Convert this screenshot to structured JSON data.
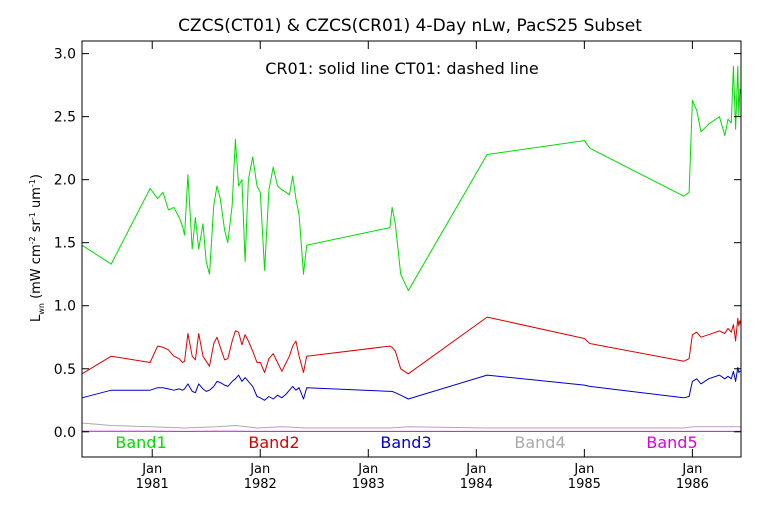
{
  "chart_data": {
    "type": "line",
    "title": "CZCS(CT01) & CZCS(CR01) 4-Day nLw, PacS25 Subset",
    "annotation": "CR01: solid line   CT01: dashed line",
    "ylabel": {
      "base": "L",
      "base_sub": "wn",
      "unit_open": " (mW cm",
      "exp1": "-2",
      "unit_mid1": " sr",
      "exp2": "-1",
      "unit_mid2": " um",
      "exp3": "-1",
      "unit_close": ")"
    },
    "x_range": [
      1980.35,
      1986.45
    ],
    "ylim": [
      -0.2,
      3.1
    ],
    "y_ticks": [
      {
        "value": 0.0,
        "label": "0.0"
      },
      {
        "value": 0.5,
        "label": "0.5"
      },
      {
        "value": 1.0,
        "label": "1.0"
      },
      {
        "value": 1.5,
        "label": "1.5"
      },
      {
        "value": 2.0,
        "label": "2.0"
      },
      {
        "value": 2.5,
        "label": "2.5"
      },
      {
        "value": 3.0,
        "label": "3.0"
      }
    ],
    "x_ticks": [
      {
        "value": 1981.0,
        "month": "Jan",
        "year": "1981"
      },
      {
        "value": 1982.0,
        "month": "Jan",
        "year": "1982"
      },
      {
        "value": 1983.0,
        "month": "Jan",
        "year": "1983"
      },
      {
        "value": 1984.0,
        "month": "Jan",
        "year": "1984"
      },
      {
        "value": 1985.0,
        "month": "Jan",
        "year": "1985"
      },
      {
        "value": 1986.0,
        "month": "Jan",
        "year": "1986"
      }
    ],
    "grid": false,
    "legend_position": "bottom",
    "series": [
      {
        "name": "Band1",
        "color": "#00dd00",
        "x": [
          1980.35,
          1980.62,
          1980.98,
          1981.05,
          1981.1,
          1981.15,
          1981.2,
          1981.25,
          1981.28,
          1981.3,
          1981.33,
          1981.37,
          1981.4,
          1981.43,
          1981.47,
          1981.5,
          1981.53,
          1981.57,
          1981.6,
          1981.63,
          1981.67,
          1981.7,
          1981.74,
          1981.77,
          1981.8,
          1981.83,
          1981.86,
          1981.89,
          1981.93,
          1981.97,
          1982.0,
          1982.04,
          1982.08,
          1982.12,
          1982.16,
          1982.2,
          1982.24,
          1982.27,
          1982.3,
          1982.33,
          1982.36,
          1982.4,
          1982.43,
          1983.2,
          1983.22,
          1983.25,
          1983.3,
          1983.37,
          1984.1,
          1985.0,
          1985.05,
          1985.92,
          1985.97,
          1986.0,
          1986.04,
          1986.08,
          1986.15,
          1986.25,
          1986.3,
          1986.33,
          1986.36,
          1986.38,
          1986.4,
          1986.42,
          1986.43,
          1986.44,
          1986.45
        ],
        "y": [
          1.48,
          1.33,
          1.93,
          1.85,
          1.9,
          1.76,
          1.78,
          1.7,
          1.63,
          1.56,
          2.04,
          1.45,
          1.7,
          1.45,
          1.65,
          1.35,
          1.25,
          1.8,
          1.95,
          1.85,
          1.6,
          1.5,
          1.8,
          2.32,
          1.95,
          2.0,
          1.35,
          2.0,
          2.18,
          1.95,
          1.9,
          1.28,
          1.92,
          2.1,
          1.95,
          1.92,
          1.9,
          1.88,
          2.03,
          1.85,
          1.72,
          1.25,
          1.48,
          1.62,
          1.78,
          1.65,
          1.25,
          1.12,
          2.2,
          2.31,
          2.25,
          1.87,
          1.9,
          2.63,
          2.55,
          2.38,
          2.44,
          2.5,
          2.35,
          2.48,
          2.45,
          2.9,
          2.4,
          2.9,
          2.5,
          2.72,
          2.68
        ]
      },
      {
        "name": "Band2",
        "color": "#dd0000",
        "x": [
          1980.35,
          1980.62,
          1980.98,
          1981.05,
          1981.1,
          1981.15,
          1981.2,
          1981.25,
          1981.28,
          1981.3,
          1981.33,
          1981.37,
          1981.4,
          1981.43,
          1981.47,
          1981.5,
          1981.53,
          1981.57,
          1981.6,
          1981.63,
          1981.67,
          1981.7,
          1981.74,
          1981.77,
          1981.8,
          1981.83,
          1981.86,
          1981.89,
          1981.93,
          1981.97,
          1982.0,
          1982.04,
          1982.08,
          1982.12,
          1982.16,
          1982.2,
          1982.24,
          1982.27,
          1982.3,
          1982.33,
          1982.36,
          1982.4,
          1982.43,
          1983.2,
          1983.22,
          1983.25,
          1983.3,
          1983.37,
          1984.1,
          1985.0,
          1985.05,
          1985.92,
          1985.97,
          1986.0,
          1986.04,
          1986.08,
          1986.15,
          1986.25,
          1986.3,
          1986.33,
          1986.36,
          1986.38,
          1986.4,
          1986.42,
          1986.43,
          1986.44,
          1986.45
        ],
        "y": [
          0.46,
          0.6,
          0.55,
          0.68,
          0.67,
          0.65,
          0.6,
          0.58,
          0.55,
          0.56,
          0.78,
          0.6,
          0.57,
          0.78,
          0.6,
          0.56,
          0.52,
          0.7,
          0.75,
          0.67,
          0.57,
          0.58,
          0.72,
          0.8,
          0.79,
          0.69,
          0.77,
          0.72,
          0.64,
          0.55,
          0.55,
          0.47,
          0.58,
          0.62,
          0.55,
          0.48,
          0.55,
          0.6,
          0.68,
          0.72,
          0.6,
          0.47,
          0.6,
          0.68,
          0.67,
          0.64,
          0.5,
          0.46,
          0.91,
          0.74,
          0.7,
          0.56,
          0.58,
          0.77,
          0.79,
          0.75,
          0.77,
          0.8,
          0.78,
          0.82,
          0.79,
          0.85,
          0.72,
          0.9,
          0.84,
          0.88,
          0.85
        ]
      },
      {
        "name": "Band3",
        "color": "#0000cc",
        "x": [
          1980.35,
          1980.62,
          1980.98,
          1981.05,
          1981.1,
          1981.15,
          1981.2,
          1981.25,
          1981.28,
          1981.3,
          1981.33,
          1981.37,
          1981.4,
          1981.43,
          1981.47,
          1981.5,
          1981.53,
          1981.57,
          1981.6,
          1981.63,
          1981.67,
          1981.7,
          1981.74,
          1981.77,
          1981.8,
          1981.83,
          1981.86,
          1981.89,
          1981.93,
          1981.97,
          1982.0,
          1982.04,
          1982.08,
          1982.12,
          1982.16,
          1982.2,
          1982.24,
          1982.27,
          1982.3,
          1982.33,
          1982.36,
          1982.4,
          1982.43,
          1983.2,
          1983.22,
          1983.25,
          1983.3,
          1983.37,
          1984.1,
          1985.0,
          1985.05,
          1985.92,
          1985.97,
          1986.0,
          1986.04,
          1986.08,
          1986.15,
          1986.25,
          1986.3,
          1986.33,
          1986.36,
          1986.38,
          1986.4,
          1986.42,
          1986.43,
          1986.44,
          1986.45
        ],
        "y": [
          0.27,
          0.33,
          0.33,
          0.35,
          0.35,
          0.34,
          0.33,
          0.34,
          0.33,
          0.34,
          0.38,
          0.32,
          0.31,
          0.38,
          0.34,
          0.32,
          0.33,
          0.36,
          0.4,
          0.39,
          0.37,
          0.36,
          0.4,
          0.42,
          0.45,
          0.4,
          0.43,
          0.4,
          0.36,
          0.28,
          0.27,
          0.25,
          0.28,
          0.26,
          0.29,
          0.27,
          0.3,
          0.33,
          0.36,
          0.33,
          0.35,
          0.26,
          0.35,
          0.32,
          0.32,
          0.31,
          0.29,
          0.26,
          0.45,
          0.37,
          0.36,
          0.27,
          0.28,
          0.4,
          0.42,
          0.38,
          0.42,
          0.45,
          0.42,
          0.44,
          0.42,
          0.48,
          0.4,
          0.51,
          0.47,
          0.48,
          0.48
        ]
      },
      {
        "name": "Band4",
        "color": "#aaaaaa",
        "x": [
          1980.35,
          1980.62,
          1980.98,
          1981.3,
          1981.6,
          1981.77,
          1981.97,
          1982.2,
          1982.43,
          1983.2,
          1983.37,
          1984.1,
          1985.0,
          1985.92,
          1986.0,
          1986.2,
          1986.45
        ],
        "y": [
          0.07,
          0.05,
          0.04,
          0.03,
          0.04,
          0.05,
          0.03,
          0.04,
          0.03,
          0.03,
          0.04,
          0.03,
          0.03,
          0.03,
          0.04,
          0.04,
          0.04
        ]
      },
      {
        "name": "Band5",
        "color": "#dd00dd",
        "x": [
          1980.35,
          1980.62,
          1980.98,
          1981.3,
          1981.6,
          1981.77,
          1981.97,
          1982.2,
          1982.43,
          1983.2,
          1983.37,
          1984.1,
          1985.0,
          1985.92,
          1986.0,
          1986.2,
          1986.45
        ],
        "y": [
          0.005,
          0.004,
          0.004,
          0.003,
          0.004,
          0.004,
          0.003,
          0.003,
          0.003,
          0.003,
          0.003,
          0.003,
          0.003,
          0.003,
          0.003,
          0.003,
          0.003
        ]
      }
    ]
  }
}
